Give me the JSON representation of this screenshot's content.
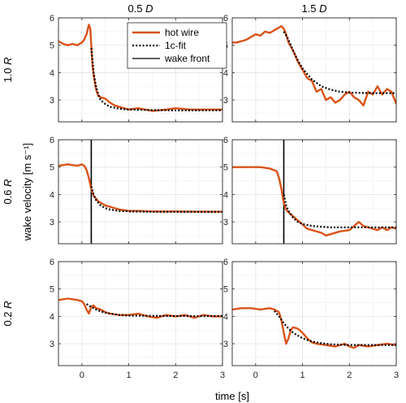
{
  "chart_data": {
    "type": "line",
    "layout": "3x2 small multiples",
    "column_titles": [
      {
        "value": "0.5",
        "italic": "D"
      },
      {
        "value": "1.5",
        "italic": "D"
      }
    ],
    "row_titles": [
      {
        "value": "1.0",
        "italic": "R"
      },
      {
        "value": "0.6",
        "italic": "R"
      },
      {
        "value": "0.2",
        "italic": "R"
      }
    ],
    "xlabel": "time [s]",
    "ylabel": "wake velocity [m s⁻¹]",
    "xlim": [
      -0.5,
      3
    ],
    "ylim": [
      2.2,
      6
    ],
    "xticks": [
      "0",
      "1",
      "2",
      "3"
    ],
    "yticks": [
      "3",
      "4",
      "5",
      "6"
    ],
    "grid": true,
    "legend": {
      "placement": "top-center of top-left panel",
      "entries": [
        "hot wire",
        "1c-fit",
        "wake front"
      ]
    },
    "colors": {
      "hot_wire": "#d95319",
      "fit": "#000000",
      "front": "#000000",
      "grid": "#e6e6e6"
    },
    "panels": [
      {
        "row": 0,
        "col": 0,
        "wake_front": null,
        "series": [
          {
            "name": "hot wire",
            "x": [
              -0.5,
              -0.4,
              -0.3,
              -0.2,
              -0.1,
              0.0,
              0.05,
              0.1,
              0.15,
              0.18,
              0.2,
              0.23,
              0.26,
              0.3,
              0.35,
              0.4,
              0.5,
              0.6,
              0.7,
              0.8,
              1.0,
              1.2,
              1.5,
              1.8,
              2.0,
              2.3,
              2.6,
              3.0
            ],
            "y": [
              5.15,
              5.05,
              5.0,
              5.05,
              5.0,
              5.1,
              5.2,
              5.4,
              5.75,
              5.6,
              5.0,
              4.2,
              3.8,
              3.4,
              3.15,
              3.1,
              3.05,
              2.9,
              2.8,
              2.75,
              2.65,
              2.7,
              2.6,
              2.65,
              2.7,
              2.65,
              2.65,
              2.65
            ]
          },
          {
            "name": "1c-fit",
            "x": [
              0.2,
              0.25,
              0.3,
              0.35,
              0.4,
              0.5,
              0.6,
              0.8,
              1.0,
              1.5,
              2.0,
              3.0
            ],
            "y": [
              4.9,
              4.0,
              3.5,
              3.2,
              3.0,
              2.85,
              2.75,
              2.68,
              2.65,
              2.63,
              2.62,
              2.62
            ]
          }
        ]
      },
      {
        "row": 0,
        "col": 1,
        "wake_front": null,
        "series": [
          {
            "name": "hot wire",
            "x": [
              -0.5,
              -0.4,
              -0.3,
              -0.2,
              -0.1,
              0.0,
              0.1,
              0.2,
              0.3,
              0.4,
              0.5,
              0.55,
              0.6,
              0.65,
              0.7,
              0.8,
              0.9,
              1.0,
              1.1,
              1.2,
              1.3,
              1.4,
              1.5,
              1.6,
              1.7,
              1.8,
              1.9,
              2.0,
              2.1,
              2.2,
              2.3,
              2.4,
              2.5,
              2.6,
              2.7,
              2.8,
              2.9,
              3.0
            ],
            "y": [
              5.1,
              5.1,
              5.15,
              5.2,
              5.3,
              5.4,
              5.35,
              5.5,
              5.45,
              5.55,
              5.65,
              5.7,
              5.6,
              5.4,
              5.1,
              4.8,
              4.4,
              4.1,
              3.8,
              3.7,
              3.3,
              3.4,
              3.0,
              3.1,
              2.9,
              3.0,
              3.2,
              3.3,
              3.1,
              3.0,
              2.8,
              3.3,
              3.2,
              3.5,
              3.2,
              3.4,
              3.3,
              2.85
            ]
          },
          {
            "name": "1c-fit",
            "x": [
              0.6,
              0.7,
              0.8,
              0.9,
              1.0,
              1.2,
              1.4,
              1.6,
              1.8,
              2.0,
              2.5,
              3.0
            ],
            "y": [
              5.5,
              5.2,
              4.8,
              4.45,
              4.15,
              3.75,
              3.5,
              3.38,
              3.3,
              3.27,
              3.25,
              3.25
            ]
          }
        ]
      },
      {
        "row": 1,
        "col": 0,
        "wake_front": 0.2,
        "series": [
          {
            "name": "hot wire",
            "x": [
              -0.5,
              -0.3,
              -0.1,
              0.0,
              0.05,
              0.1,
              0.15,
              0.2,
              0.25,
              0.3,
              0.35,
              0.4,
              0.5,
              0.6,
              0.8,
              1.0,
              1.2,
              1.5,
              2.0,
              2.5,
              3.0
            ],
            "y": [
              5.05,
              5.1,
              5.05,
              5.1,
              5.05,
              4.9,
              4.6,
              4.2,
              3.95,
              3.85,
              3.75,
              3.7,
              3.6,
              3.55,
              3.45,
              3.4,
              3.4,
              3.38,
              3.38,
              3.37,
              3.37
            ]
          },
          {
            "name": "1c-fit",
            "x": [
              0.2,
              0.25,
              0.3,
              0.4,
              0.5,
              0.6,
              0.8,
              1.0,
              1.5,
              2.0,
              3.0
            ],
            "y": [
              4.3,
              4.0,
              3.8,
              3.6,
              3.5,
              3.45,
              3.4,
              3.38,
              3.37,
              3.37,
              3.37
            ]
          }
        ]
      },
      {
        "row": 1,
        "col": 1,
        "wake_front": 0.6,
        "series": [
          {
            "name": "hot wire",
            "x": [
              -0.5,
              -0.3,
              -0.1,
              0.1,
              0.3,
              0.45,
              0.5,
              0.55,
              0.6,
              0.65,
              0.7,
              0.8,
              0.9,
              1.0,
              1.1,
              1.2,
              1.3,
              1.4,
              1.5,
              1.6,
              1.8,
              2.0,
              2.1,
              2.2,
              2.3,
              2.4,
              2.5,
              2.6,
              2.7,
              2.8,
              2.9,
              3.0
            ],
            "y": [
              5.0,
              5.0,
              5.0,
              5.0,
              4.95,
              4.85,
              4.6,
              4.2,
              3.7,
              3.45,
              3.35,
              3.2,
              3.05,
              2.9,
              2.75,
              2.7,
              2.65,
              2.6,
              2.5,
              2.55,
              2.65,
              2.7,
              2.85,
              3.0,
              2.85,
              2.8,
              2.75,
              2.7,
              2.8,
              2.7,
              2.8,
              2.75
            ]
          },
          {
            "name": "1c-fit",
            "x": [
              0.6,
              0.65,
              0.7,
              0.8,
              0.9,
              1.0,
              1.2,
              1.4,
              1.6,
              2.0,
              3.0
            ],
            "y": [
              4.0,
              3.6,
              3.4,
              3.15,
              3.0,
              2.92,
              2.85,
              2.82,
              2.8,
              2.8,
              2.8
            ]
          }
        ]
      },
      {
        "row": 2,
        "col": 0,
        "wake_front": null,
        "series": [
          {
            "name": "hot wire",
            "x": [
              -0.5,
              -0.3,
              -0.1,
              0.0,
              0.05,
              0.1,
              0.15,
              0.2,
              0.25,
              0.3,
              0.4,
              0.5,
              0.6,
              0.8,
              1.0,
              1.2,
              1.4,
              1.6,
              1.8,
              2.0,
              2.2,
              2.4,
              2.6,
              2.8,
              3.0
            ],
            "y": [
              4.6,
              4.65,
              4.6,
              4.55,
              4.45,
              4.25,
              4.1,
              4.35,
              4.4,
              4.3,
              4.25,
              4.15,
              4.1,
              4.05,
              4.05,
              4.1,
              4.0,
              3.95,
              4.05,
              4.0,
              4.05,
              3.95,
              4.05,
              4.0,
              4.0
            ]
          },
          {
            "name": "1c-fit",
            "x": [
              0.1,
              0.2,
              0.3,
              0.4,
              0.6,
              0.8,
              1.0,
              1.5,
              2.0,
              3.0
            ],
            "y": [
              4.45,
              4.35,
              4.25,
              4.18,
              4.1,
              4.05,
              4.03,
              4.02,
              4.01,
              4.01
            ]
          }
        ]
      },
      {
        "row": 2,
        "col": 1,
        "wake_front": null,
        "series": [
          {
            "name": "hot wire",
            "x": [
              -0.5,
              -0.3,
              -0.1,
              0.1,
              0.3,
              0.4,
              0.5,
              0.55,
              0.6,
              0.65,
              0.7,
              0.75,
              0.8,
              0.9,
              1.0,
              1.1,
              1.2,
              1.3,
              1.5,
              1.7,
              1.9,
              2.0,
              2.1,
              2.2,
              2.4,
              2.6,
              2.8,
              3.0
            ],
            "y": [
              4.25,
              4.3,
              4.3,
              4.25,
              4.3,
              4.25,
              4.15,
              3.85,
              3.4,
              3.0,
              3.2,
              3.5,
              3.6,
              3.55,
              3.4,
              3.2,
              3.05,
              3.0,
              2.95,
              2.9,
              3.0,
              2.9,
              2.85,
              2.95,
              2.9,
              2.95,
              3.0,
              2.95
            ]
          },
          {
            "name": "1c-fit",
            "x": [
              0.4,
              0.5,
              0.6,
              0.7,
              0.8,
              1.0,
              1.2,
              1.4,
              1.6,
              2.0,
              3.0
            ],
            "y": [
              4.2,
              4.0,
              3.75,
              3.55,
              3.4,
              3.2,
              3.08,
              3.02,
              2.98,
              2.95,
              2.95
            ]
          }
        ]
      }
    ]
  }
}
